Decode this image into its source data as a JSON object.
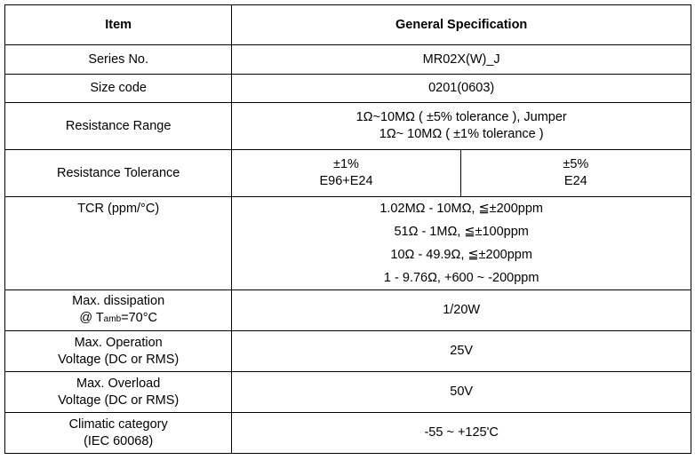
{
  "header": {
    "item": "Item",
    "spec": "General Specification"
  },
  "rows": {
    "series": {
      "label": "Series No.",
      "value": "MR02X(W)_J"
    },
    "size": {
      "label": "Size code",
      "value": "0201(0603)"
    },
    "resistance_range": {
      "label": "Resistance Range",
      "values": [
        "1Ω~10MΩ ( ±5% tolerance ), Jumper",
        "1Ω~ 10MΩ ( ±1% tolerance )"
      ]
    },
    "tolerance": {
      "label": "Resistance Tolerance",
      "col1": [
        "±1%",
        "E96+E24"
      ],
      "col2": [
        "±5%",
        "E24"
      ]
    },
    "tcr": {
      "label": "TCR (ppm/°C)",
      "values": [
        "1.02MΩ - 10MΩ, ≦±200ppm",
        "51Ω - 1MΩ, ≦±100ppm",
        "10Ω - 49.9Ω, ≦±200ppm",
        "1 - 9.76Ω, +600 ~ -200ppm"
      ]
    },
    "dissipation": {
      "label_line1": "Max. dissipation",
      "label_prefix": "@ T",
      "label_sub": "amb",
      "label_suffix": "=70°C",
      "value": "1/20W"
    },
    "operation_voltage": {
      "label": [
        "Max. Operation",
        "Voltage (DC or RMS)"
      ],
      "value": "25V"
    },
    "overload_voltage": {
      "label": [
        "Max. Overload",
        "Voltage (DC or RMS)"
      ],
      "value": "50V"
    },
    "climatic": {
      "label": [
        "Climatic category",
        "(IEC 60068)"
      ],
      "value": "-55 ~ +125'C"
    }
  }
}
